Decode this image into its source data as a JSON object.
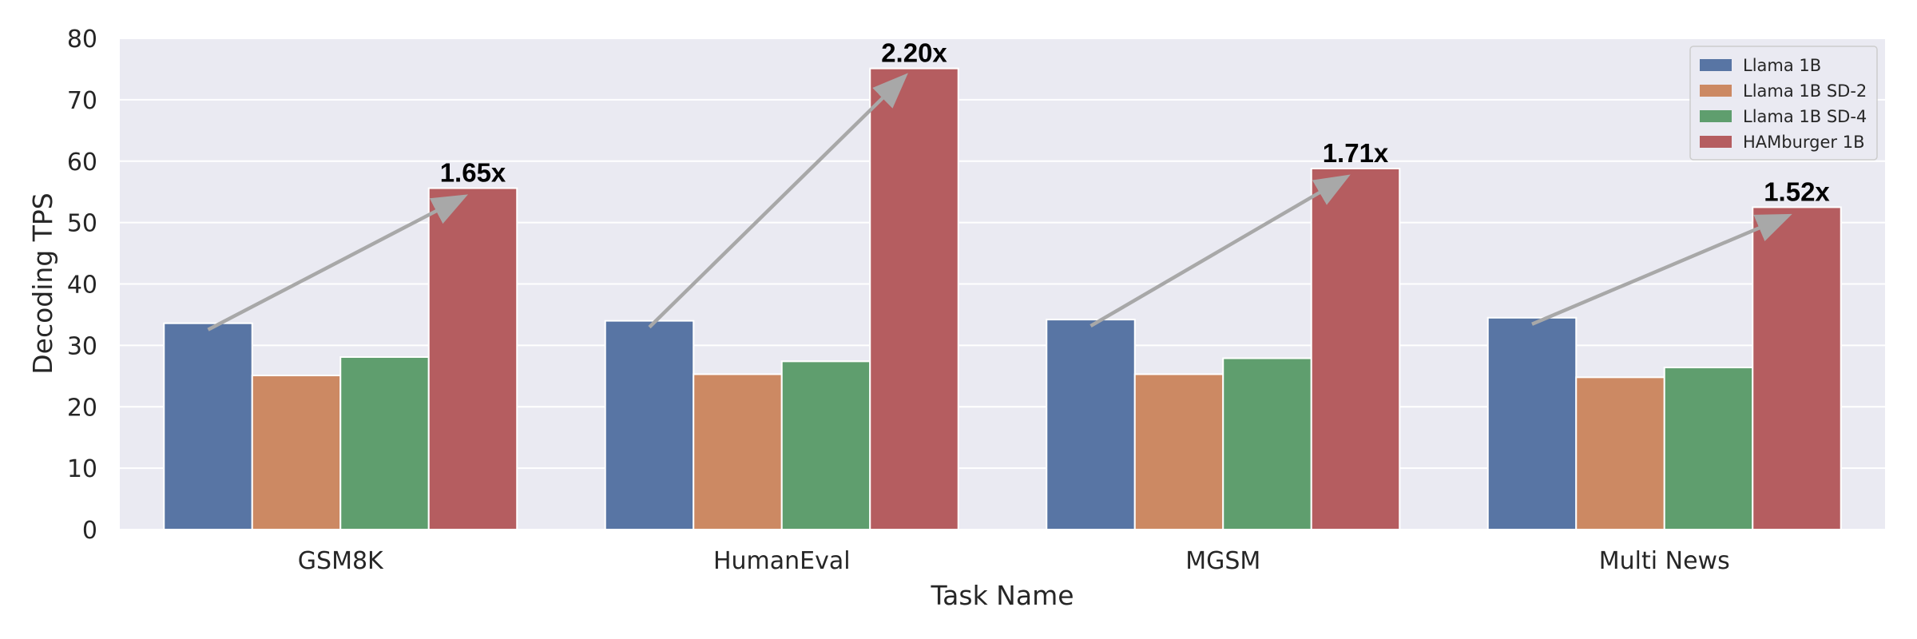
{
  "chart_data": {
    "type": "bar",
    "title": "",
    "xlabel": "Task Name",
    "ylabel": "Decoding TPS",
    "categories": [
      "GSM8K",
      "HumanEval",
      "MGSM",
      "Multi News"
    ],
    "ylim": [
      0,
      80
    ],
    "yticks": [
      "0",
      "10",
      "20",
      "30",
      "40",
      "50",
      "60",
      "70",
      "80"
    ],
    "grid": true,
    "legend_position": "top-right",
    "series": [
      {
        "name": "Llama 1B",
        "color": "#5875a4",
        "values": [
          33.6,
          34.0,
          34.2,
          34.5
        ]
      },
      {
        "name": "Llama 1B SD-2",
        "color": "#cc8963",
        "values": [
          25.1,
          25.3,
          25.3,
          24.8
        ]
      },
      {
        "name": "Llama 1B SD-4",
        "color": "#5f9e6e",
        "values": [
          28.1,
          27.4,
          27.9,
          26.4
        ]
      },
      {
        "name": "HAMburger 1B",
        "color": "#b55d60",
        "values": [
          55.6,
          75.1,
          58.8,
          52.5
        ]
      }
    ],
    "annotations": [
      {
        "category": "GSM8K",
        "text": "1.65x",
        "from_series": "Llama 1B",
        "to_series": "HAMburger 1B"
      },
      {
        "category": "HumanEval",
        "text": "2.20x",
        "from_series": "Llama 1B",
        "to_series": "HAMburger 1B"
      },
      {
        "category": "MGSM",
        "text": "1.71x",
        "from_series": "Llama 1B",
        "to_series": "HAMburger 1B"
      },
      {
        "category": "Multi News",
        "text": "1.52x",
        "from_series": "Llama 1B",
        "to_series": "HAMburger 1B"
      }
    ],
    "colors": {
      "plot_background": "#eaeaf2",
      "grid": "#ffffff",
      "arrow": "#a8a8a8",
      "text": "#262626"
    }
  }
}
